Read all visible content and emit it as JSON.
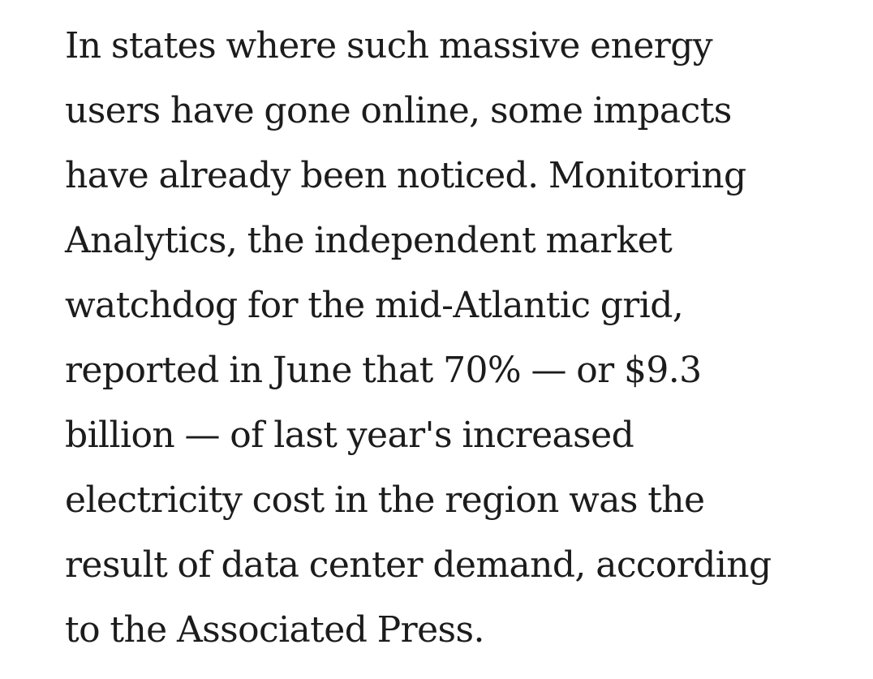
{
  "article": {
    "paragraph": {
      "lines": [
        "In states where such massive energy",
        "users have gone online, some impacts",
        "have already been noticed. Monitoring",
        "Analytics, the independent market",
        "watchdog for the mid-Atlantic grid,",
        "reported in June that 70% — or $9.3",
        "billion — of last year's increased",
        "electricity cost in the region was the",
        "result of data center demand, according",
        "to the Associated Press."
      ]
    }
  }
}
